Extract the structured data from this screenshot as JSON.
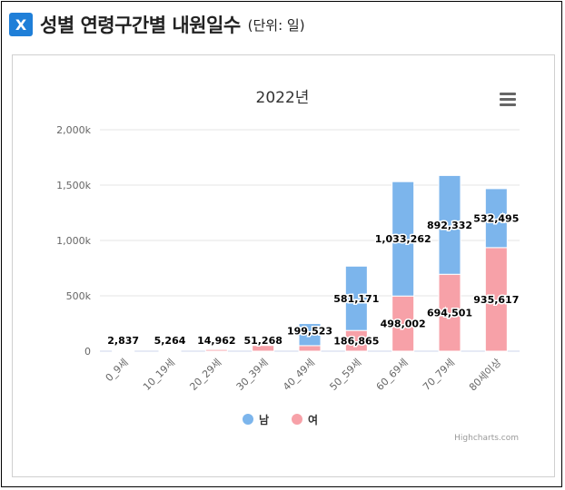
{
  "header": {
    "logo_text": "X",
    "title": "성별 연령구간별 내원일수",
    "unit": "(단위: 일)"
  },
  "chart_data": {
    "type": "bar",
    "stacked": true,
    "title": "2022년",
    "categories": [
      "0_9세",
      "10_19세",
      "20_29세",
      "30_39세",
      "40_49세",
      "50_59세",
      "60_69세",
      "70_79세",
      "80세이상"
    ],
    "series": [
      {
        "name": "남",
        "color": "#7cb5ec",
        "values": [
          0,
          0,
          0,
          0,
          199523,
          581171,
          1033262,
          892332,
          532495
        ]
      },
      {
        "name": "여",
        "color": "#f7a1a8",
        "values": [
          2837,
          5264,
          14962,
          51268,
          50000,
          186865,
          498002,
          694501,
          935617
        ]
      }
    ],
    "data_labels": [
      {
        "category": "0_9세",
        "label": "2,837"
      },
      {
        "category": "10_19세",
        "label": "5,264"
      },
      {
        "category": "20_29세",
        "label": "14,962"
      },
      {
        "category": "30_39세",
        "label": "51,268"
      },
      {
        "category": "40_49세",
        "label": "199,523"
      },
      {
        "category": "50_59세",
        "label": "581,171"
      },
      {
        "category": "50_59세",
        "label": "186,865"
      },
      {
        "category": "60_69세",
        "label": "1,033,262"
      },
      {
        "category": "60_69세",
        "label": "498,002"
      },
      {
        "category": "70_79세",
        "label": "892,332"
      },
      {
        "category": "70_79세",
        "label": "694,501"
      },
      {
        "category": "80세이상",
        "label": "532,495"
      },
      {
        "category": "80세이상",
        "label": "935,617"
      }
    ],
    "y_ticks": [
      "0",
      "500k",
      "1,000k",
      "1,500k",
      "2,000k"
    ],
    "ylim": [
      0,
      2000000
    ],
    "legend": [
      "남",
      "여"
    ],
    "legend_position": "bottom",
    "credits": "Highcharts.com"
  }
}
